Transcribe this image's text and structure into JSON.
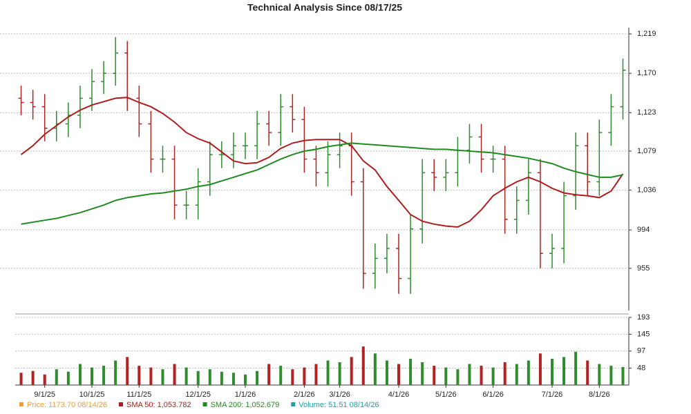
{
  "chart_data": {
    "type": "ohlc",
    "title": "Technical Analysis Since 08/17/25",
    "categories": [
      null,
      null,
      "9/1/25",
      null,
      null,
      null,
      "10/1/25",
      null,
      null,
      null,
      "11/1/25",
      null,
      null,
      null,
      null,
      "12/1/25",
      null,
      null,
      null,
      "1/1/26",
      null,
      null,
      null,
      null,
      "2/1/26",
      null,
      null,
      "3/1/26",
      null,
      null,
      null,
      null,
      "4/1/26",
      null,
      null,
      null,
      "5/1/26",
      null,
      null,
      null,
      "6/1/26",
      null,
      null,
      null,
      null,
      "7/1/26",
      null,
      null,
      null,
      "8/1/26",
      null,
      null
    ],
    "open": [
      1140,
      1135,
      1130,
      1105,
      1110,
      1120,
      1140,
      1160,
      1170,
      1195,
      1140,
      1110,
      1070,
      1070,
      1020,
      1020,
      1045,
      1075,
      1075,
      1085,
      1085,
      1110,
      1100,
      1130,
      1115,
      1070,
      1055,
      1075,
      1085,
      1045,
      950,
      965,
      975,
      945,
      995,
      1055,
      1050,
      1055,
      1080,
      1095,
      1070,
      1070,
      1005,
      1025,
      1055,
      970,
      975,
      1030,
      1085,
      1045,
      1100,
      1130
    ],
    "high": [
      1155,
      1150,
      1145,
      1125,
      1135,
      1155,
      1175,
      1185,
      1215,
      1210,
      1155,
      1125,
      1085,
      1085,
      1035,
      1060,
      1090,
      1090,
      1100,
      1100,
      1125,
      1125,
      1145,
      1145,
      1130,
      1085,
      1090,
      1100,
      1100,
      1060,
      980,
      990,
      990,
      1010,
      1070,
      1070,
      1070,
      1095,
      1110,
      1110,
      1085,
      1085,
      1040,
      1070,
      1070,
      990,
      1045,
      1100,
      1100,
      1115,
      1145,
      1188
    ],
    "low": [
      1120,
      1115,
      1090,
      1090,
      1095,
      1105,
      1125,
      1145,
      1155,
      1125,
      1095,
      1055,
      1055,
      1005,
      1005,
      1005,
      1030,
      1060,
      1060,
      1070,
      1070,
      1085,
      1085,
      1100,
      1055,
      1040,
      1040,
      1060,
      1030,
      935,
      935,
      950,
      930,
      930,
      980,
      1035,
      1035,
      1040,
      1065,
      1055,
      1055,
      990,
      990,
      1010,
      955,
      955,
      960,
      1015,
      1030,
      1030,
      1085,
      1115
    ],
    "close": [
      1135,
      1130,
      1105,
      1110,
      1120,
      1140,
      1160,
      1170,
      1195,
      1140,
      1110,
      1070,
      1070,
      1020,
      1020,
      1045,
      1075,
      1075,
      1085,
      1085,
      1110,
      1100,
      1130,
      1115,
      1070,
      1055,
      1075,
      1085,
      1045,
      950,
      965,
      975,
      945,
      995,
      1055,
      1050,
      1055,
      1080,
      1095,
      1070,
      1070,
      1005,
      1025,
      1055,
      970,
      975,
      1030,
      1085,
      1045,
      1100,
      1130,
      1173.7
    ],
    "up_color": "#2e8b2e",
    "down_color": "#b22222",
    "log_scale": true,
    "grid": true,
    "ylim": [
      914,
      1227
    ],
    "yticks": [
      {
        "value": 955,
        "label": "955"
      },
      {
        "value": 994,
        "label": "994"
      },
      {
        "value": 1036,
        "label": "1,036"
      },
      {
        "value": 1079,
        "label": "1,079"
      },
      {
        "value": 1123,
        "label": "1,123"
      },
      {
        "value": 1170,
        "label": "1,170"
      },
      {
        "value": 1219,
        "label": "1,219"
      }
    ],
    "series": [
      {
        "color": "#b01c1c",
        "values": [
          1075,
          1085,
          1098,
          1108,
          1118,
          1126,
          1132,
          1136,
          1140,
          1141,
          1135,
          1130,
          1122,
          1112,
          1100,
          1093,
          1088,
          1078,
          1068,
          1065,
          1066,
          1072,
          1082,
          1088,
          1091,
          1092,
          1092,
          1092,
          1085,
          1068,
          1058,
          1040,
          1025,
          1010,
          1003,
          1000,
          998,
          997,
          1003,
          1015,
          1030,
          1038,
          1045,
          1050,
          1045,
          1038,
          1033,
          1031,
          1030,
          1028,
          1035,
          1053.782
        ]
      },
      {
        "color": "#1f8a1f",
        "values": [
          1000,
          1002,
          1004,
          1006,
          1009,
          1012,
          1016,
          1020,
          1025,
          1028,
          1030,
          1032,
          1033,
          1035,
          1037,
          1040,
          1042,
          1046,
          1050,
          1054,
          1058,
          1064,
          1070,
          1075,
          1079,
          1081,
          1084,
          1086,
          1088,
          1087,
          1086,
          1085,
          1084,
          1083,
          1082,
          1081,
          1081,
          1080,
          1079,
          1078,
          1077,
          1075,
          1073,
          1071,
          1068,
          1065,
          1060,
          1056,
          1053,
          1050,
          1050,
          1052.679
        ]
      }
    ],
    "volume": {
      "values": [
        35,
        40,
        30,
        45,
        38,
        60,
        50,
        55,
        70,
        80,
        55,
        50,
        45,
        60,
        50,
        40,
        45,
        38,
        35,
        30,
        40,
        60,
        55,
        45,
        50,
        60,
        70,
        65,
        80,
        110,
        90,
        70,
        60,
        75,
        65,
        55,
        50,
        45,
        60,
        55,
        50,
        65,
        60,
        70,
        90,
        75,
        80,
        95,
        70,
        60,
        55,
        51.51
      ],
      "ylim": [
        0,
        193
      ],
      "yticks": [
        48,
        97,
        145,
        193
      ]
    },
    "legend": [
      {
        "label": "Price: 1173.70  08/14/26",
        "color": "#f0a030"
      },
      {
        "label": "SMA 50: 1,053.782",
        "color": "#b01c1c"
      },
      {
        "label": "SMA 200: 1,052.679",
        "color": "#1f8a1f"
      },
      {
        "label": "Volume: 51.51  08/14/26",
        "color": "#20a0a0"
      }
    ]
  }
}
